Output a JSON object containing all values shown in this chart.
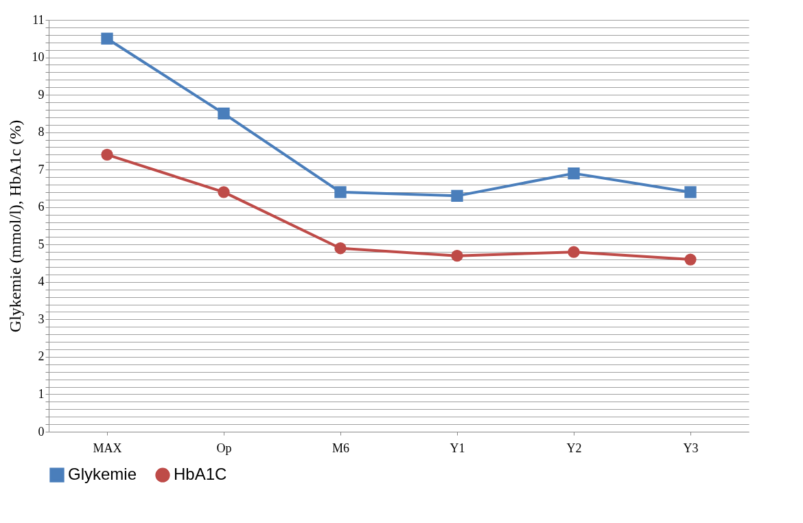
{
  "chart_data": {
    "type": "line",
    "ylabel": "Glykemie (mmol/l), HbA1c (%)",
    "categories": [
      "MAX",
      "Op",
      "M6",
      "Y1",
      "Y2",
      "Y3"
    ],
    "series": [
      {
        "name": "Glykemie",
        "color": "#4a7ebb",
        "marker": "square",
        "values": [
          10.5,
          8.5,
          6.4,
          6.3,
          6.9,
          6.4
        ]
      },
      {
        "name": "HbA1C",
        "color": "#be4b48",
        "marker": "circle",
        "values": [
          7.4,
          6.4,
          4.9,
          4.7,
          4.8,
          4.6
        ]
      }
    ],
    "ylim": [
      0,
      11
    ],
    "yticks": [
      0,
      {
        "value": 0.2,
        "label": null
      },
      {
        "value": 0.4,
        "label": null
      },
      {
        "value": 0.6,
        "label": null
      },
      {
        "value": 0.8,
        "label": null
      },
      1,
      {
        "value": 1.2,
        "label": null
      },
      {
        "value": 1.4,
        "label": null
      },
      {
        "value": 1.6,
        "label": null
      },
      {
        "value": 1.8,
        "label": null
      },
      2,
      {
        "value": 2.2,
        "label": null
      },
      {
        "value": 2.4,
        "label": null
      },
      {
        "value": 2.6,
        "label": null
      },
      {
        "value": 2.8,
        "label": null
      },
      3,
      {
        "value": 3.2,
        "label": null
      },
      {
        "value": 3.4,
        "label": null
      },
      {
        "value": 3.6,
        "label": null
      },
      {
        "value": 3.8,
        "label": null
      },
      4,
      {
        "value": 4.2,
        "label": null
      },
      {
        "value": 4.4,
        "label": null
      },
      {
        "value": 4.6,
        "label": null
      },
      {
        "value": 4.8,
        "label": null
      },
      5,
      {
        "value": 5.2,
        "label": null
      },
      {
        "value": 5.4,
        "label": null
      },
      {
        "value": 5.6,
        "label": null
      },
      {
        "value": 5.8,
        "label": null
      },
      6,
      {
        "value": 6.2,
        "label": null
      },
      {
        "value": 6.4,
        "label": null
      },
      {
        "value": 6.6,
        "label": null
      },
      {
        "value": 6.8,
        "label": null
      },
      7,
      {
        "value": 7.2,
        "label": null
      },
      {
        "value": 7.4,
        "label": null
      },
      {
        "value": 7.6,
        "label": null
      },
      {
        "value": 7.8,
        "label": null
      },
      8,
      {
        "value": 8.2,
        "label": null
      },
      {
        "value": 8.4,
        "label": null
      },
      {
        "value": 8.6,
        "label": null
      },
      {
        "value": 8.8,
        "label": null
      },
      9,
      {
        "value": 9.2,
        "label": null
      },
      {
        "value": 9.4,
        "label": null
      },
      {
        "value": 9.6,
        "label": null
      },
      {
        "value": 9.8,
        "label": null
      },
      10,
      {
        "value": 10.2,
        "label": null
      },
      {
        "value": 10.4,
        "label": null
      },
      {
        "value": 10.6,
        "label": null
      },
      {
        "value": 10.8,
        "label": null
      },
      11
    ],
    "grid": "y",
    "legend": "bottom"
  }
}
